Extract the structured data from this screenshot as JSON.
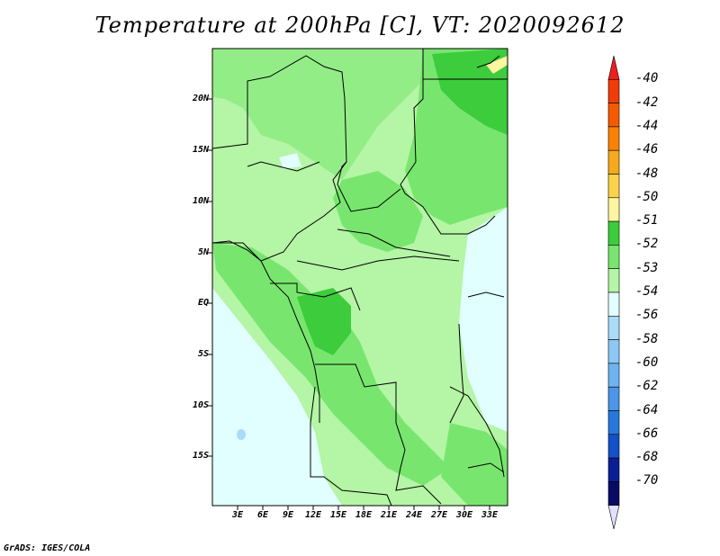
{
  "title": "Temperature at 200hPa [C], VT: 2020092612",
  "credit": "GrADS: IGES/COLA",
  "map": {
    "lat_ticks": [
      "20N",
      "15N",
      "10N",
      "5N",
      "EQ",
      "5S",
      "10S",
      "15S"
    ],
    "lon_ticks": [
      "3E",
      "6E",
      "9E",
      "12E",
      "15E",
      "18E",
      "21E",
      "24E",
      "27E",
      "30E",
      "33E"
    ],
    "background_color": "#b4f5a6"
  },
  "colorbar": {
    "labels": [
      "-40",
      "-42",
      "-44",
      "-46",
      "-48",
      "-50",
      "-51",
      "-52",
      "-53",
      "-54",
      "-56",
      "-58",
      "-60",
      "-62",
      "-64",
      "-66",
      "-68",
      "-70"
    ],
    "colors": [
      "#f01e1e",
      "#f03c0a",
      "#f55a00",
      "#fa8200",
      "#f5aa1e",
      "#fad24b",
      "#fff5a0",
      "#3ccc3c",
      "#78e66e",
      "#b4f5a6",
      "#e1ffff",
      "#aadcfa",
      "#8cc8f5",
      "#6eb4f0",
      "#4b96e6",
      "#2878dc",
      "#1450c8",
      "#0a1e96",
      "#080a64",
      "#e1e1ff"
    ]
  }
}
